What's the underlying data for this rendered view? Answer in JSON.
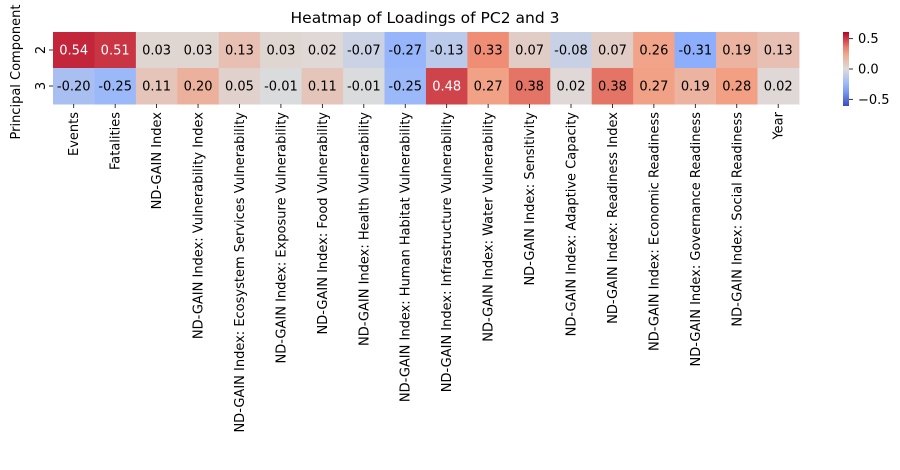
{
  "chart_data": {
    "type": "heatmap",
    "title": "Heatmap of Loadings of PC2 and 3",
    "ylabel": "Principal Component",
    "rows": [
      "2",
      "3"
    ],
    "columns": [
      "Events",
      "Fatalities",
      "ND-GAIN Index",
      "ND-GAIN Index: Vulnerability Index",
      "ND-GAIN Index: Ecosystem Services Vulnerability",
      "ND-GAIN Index: Exposure Vulnerability",
      "ND-GAIN Index: Food Vulnerability",
      "ND-GAIN Index: Health Vulnerability",
      "ND-GAIN Index: Human Habitat Vulnerability",
      "ND-GAIN Index: Infrastructure Vulnerability",
      "ND-GAIN Index: Water Vulnerability",
      "ND-GAIN Index: Sensitivity",
      "ND-GAIN Index: Adaptive Capacity",
      "ND-GAIN Index: Readiness Index",
      "ND-GAIN Index: Economic Readiness",
      "ND-GAIN Index: Governance Readiness",
      "ND-GAIN Index: Social Readiness",
      "Year"
    ],
    "values": [
      [
        0.54,
        0.51,
        0.03,
        0.03,
        0.13,
        0.03,
        0.02,
        -0.07,
        -0.27,
        -0.13,
        0.33,
        0.07,
        -0.08,
        0.07,
        0.26,
        -0.31,
        0.19,
        0.13
      ],
      [
        -0.2,
        -0.25,
        0.11,
        0.2,
        0.05,
        -0.01,
        0.11,
        -0.01,
        -0.25,
        0.48,
        0.27,
        0.38,
        0.02,
        0.38,
        0.27,
        0.19,
        0.28,
        0.02
      ]
    ],
    "value_labels": [
      [
        "0.54",
        "0.51",
        "0.03",
        "0.03",
        "0.13",
        "0.03",
        "0.02",
        "-0.07",
        "-0.27",
        "-0.13",
        "0.33",
        "0.07",
        "-0.08",
        "0.07",
        "0.26",
        "-0.31",
        "0.19",
        "0.13"
      ],
      [
        "-0.20",
        "-0.25",
        "0.11",
        "0.20",
        "0.05",
        "-0.01",
        "0.11",
        "-0.01",
        "-0.25",
        "0.48",
        "0.27",
        "0.38",
        "0.02",
        "0.38",
        "0.27",
        "0.19",
        "0.28",
        "0.02"
      ]
    ],
    "colormap": "coolwarm",
    "vmin": -0.61,
    "vmax": 0.61,
    "colorbar_ticks": [
      0.5,
      0.0,
      -0.5
    ],
    "colorbar_tick_labels": [
      "0.5",
      "0.0",
      "−0.5"
    ],
    "colors": {
      "cold": "#3b4cc0",
      "neutral": "#dddcdc",
      "hot": "#b40426"
    },
    "annotated": true
  }
}
